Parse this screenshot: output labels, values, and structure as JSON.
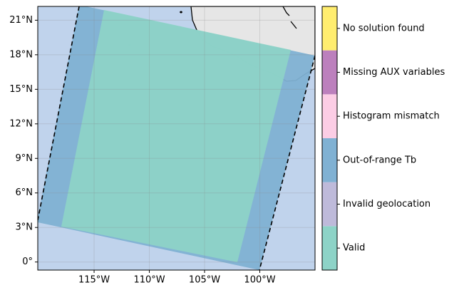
{
  "chart_data": {
    "type": "map",
    "xlim": [
      -120.1,
      -95.0
    ],
    "ylim": [
      -0.7,
      22.2
    ],
    "xticks": [
      {
        "value": -115,
        "label": "115°W"
      },
      {
        "value": -110,
        "label": "110°W"
      },
      {
        "value": -105,
        "label": "105°W"
      },
      {
        "value": -100,
        "label": "100°W"
      }
    ],
    "yticks": [
      {
        "value": 0,
        "label": "0°"
      },
      {
        "value": 3,
        "label": "3°N"
      },
      {
        "value": 6,
        "label": "6°N"
      },
      {
        "value": 9,
        "label": "9°N"
      },
      {
        "value": 12,
        "label": "12°N"
      },
      {
        "value": 15,
        "label": "15°N"
      },
      {
        "value": 18,
        "label": "18°N"
      },
      {
        "value": 21,
        "label": "21°N"
      }
    ],
    "grid": true,
    "legend": {
      "categories": [
        "Valid",
        "Invalid geolocation",
        "Out-of-range Tb",
        "Histogram mismatch",
        "Missing AUX variables",
        "No solution found"
      ],
      "colors": [
        "#8dd3c7",
        "#bebada",
        "#80b1d3",
        "#fccde5",
        "#bc80bd",
        "#ffed6f"
      ]
    }
  }
}
